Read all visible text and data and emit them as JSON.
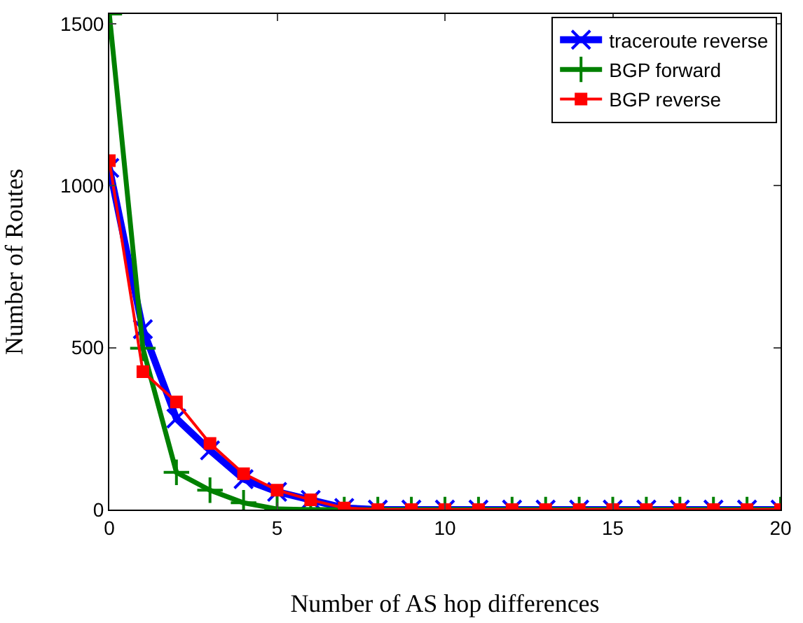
{
  "chart_data": {
    "type": "line",
    "xlabel": "Number of AS hop differences",
    "ylabel": "Number of Routes",
    "x": [
      0,
      1,
      2,
      3,
      4,
      5,
      6,
      7,
      8,
      9,
      10,
      11,
      12,
      13,
      14,
      15,
      16,
      17,
      18,
      19,
      20
    ],
    "series": [
      {
        "name": "traceroute reverse",
        "color": "#0000ff",
        "marker": "cross",
        "values": [
          1055,
          557,
          281,
          183,
          94,
          55,
          30,
          5,
          0,
          0,
          0,
          0,
          0,
          0,
          0,
          0,
          0,
          0,
          0,
          0,
          0
        ]
      },
      {
        "name": "BGP forward",
        "color": "#008000",
        "marker": "plus",
        "values": [
          1530,
          498,
          115,
          60,
          21,
          2,
          0,
          0,
          0,
          0,
          0,
          0,
          0,
          0,
          0,
          0,
          0,
          0,
          0,
          0,
          0
        ]
      },
      {
        "name": "BGP reverse",
        "color": "#ff0000",
        "marker": "square",
        "values": [
          1077,
          426,
          332,
          204,
          111,
          60,
          30,
          5,
          0,
          0,
          0,
          0,
          0,
          0,
          0,
          0,
          0,
          0,
          0,
          0,
          0
        ]
      }
    ],
    "xlim": [
      0,
      20
    ],
    "xticks": [
      0,
      5,
      10,
      15,
      20
    ],
    "ylim": [
      0,
      1530
    ],
    "yticks": [
      0,
      500,
      1000,
      1500
    ],
    "legend": "top right",
    "line_style": "solid"
  }
}
